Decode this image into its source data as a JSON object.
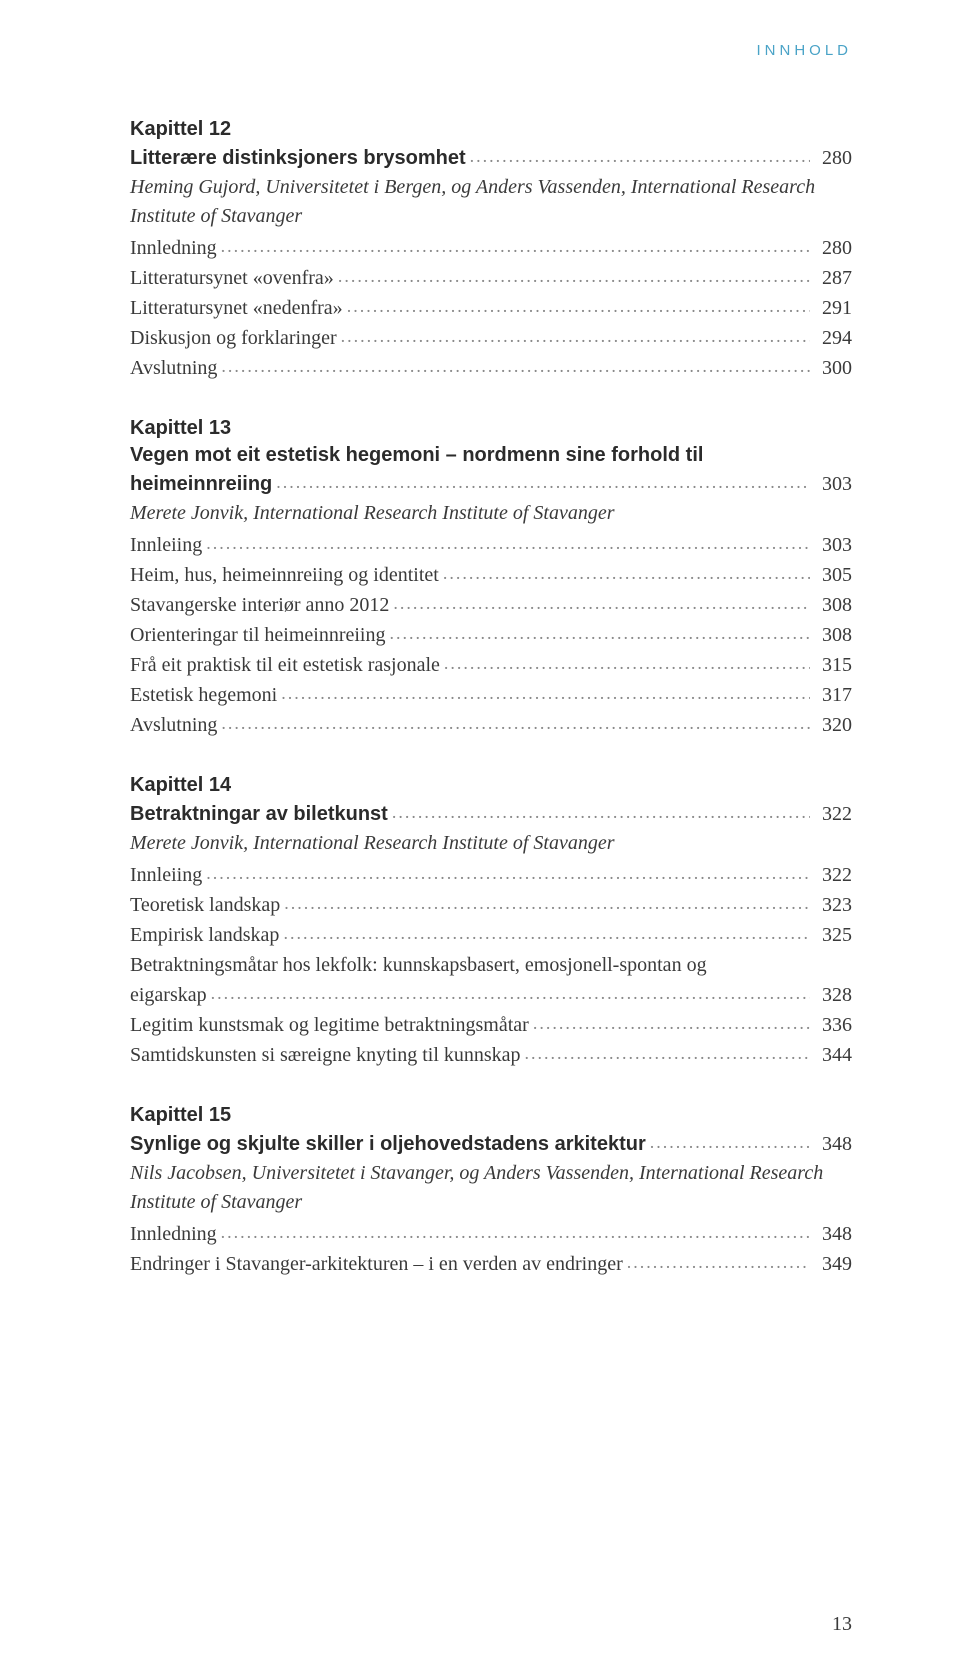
{
  "running_head": "INNHOLD",
  "page_number": "13",
  "chapters": [
    {
      "label": "Kapittel 12",
      "title": "Litterære distinksjoners brysomhet",
      "title_page": "280",
      "authors": "Heming Gujord, Universitetet i Bergen, og Anders Vassenden, International Research Institute of Stavanger",
      "entries": [
        {
          "text": "Innledning",
          "page": "280"
        },
        {
          "text": "Litteratursynet «ovenfra»",
          "page": "287"
        },
        {
          "text": "Litteratursynet «nedenfra»",
          "page": "291"
        },
        {
          "text": "Diskusjon og forklaringer",
          "page": "294"
        },
        {
          "text": "Avslutning",
          "page": "300"
        }
      ]
    },
    {
      "label": "Kapittel 13",
      "title_line1": "Vegen mot eit estetisk hegemoni – nordmenn sine forhold til",
      "title_line2": "heimeinnreiing",
      "title_page": "303",
      "authors": "Merete Jonvik, International Research Institute of Stavanger",
      "entries": [
        {
          "text": "Innleiing",
          "page": "303"
        },
        {
          "text": "Heim, hus, heimeinnreiing og identitet",
          "page": "305"
        },
        {
          "text": "Stavangerske interiør anno 2012",
          "page": "308"
        },
        {
          "text": "Orienteringar til heimeinnreiing",
          "page": "308"
        },
        {
          "text": "Frå eit praktisk til eit estetisk rasjonale",
          "page": "315"
        },
        {
          "text": "Estetisk hegemoni",
          "page": "317"
        },
        {
          "text": "Avslutning",
          "page": "320"
        }
      ]
    },
    {
      "label": "Kapittel 14",
      "title": "Betraktningar av biletkunst",
      "title_page": "322",
      "authors": "Merete Jonvik, International Research Institute of Stavanger",
      "entries": [
        {
          "text": "Innleiing",
          "page": "322"
        },
        {
          "text": "Teoretisk landskap",
          "page": "323"
        },
        {
          "text": "Empirisk landskap",
          "page": "325"
        },
        {
          "text_line1": "Betraktningsmåtar hos lekfolk: kunnskapsbasert, emosjonell-spontan og",
          "text_line2": "eigarskap",
          "page": "328",
          "multiline": true
        },
        {
          "text": "Legitim kunstsmak og legitime betraktningsmåtar",
          "page": "336"
        },
        {
          "text": "Samtidskunsten si særeigne knyting til kunnskap",
          "page": "344"
        }
      ]
    },
    {
      "label": "Kapittel 15",
      "title": "Synlige og skjulte skiller i oljehovedstadens arkitektur",
      "title_page": "348",
      "authors": "Nils Jacobsen, Universitetet i Stavanger, og Anders Vassenden, International Research Institute of Stavanger",
      "entries": [
        {
          "text": "Innledning",
          "page": "348"
        },
        {
          "text": "Endringer i Stavanger-arkitekturen – i en verden av endringer",
          "page": "349"
        }
      ]
    }
  ]
}
